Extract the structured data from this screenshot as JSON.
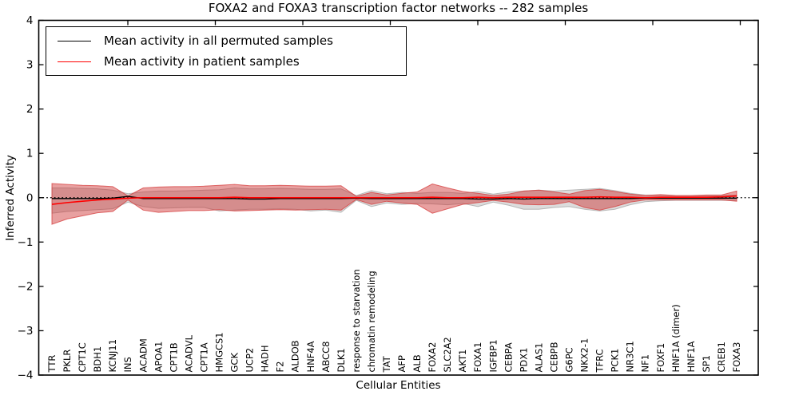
{
  "title": "FOXA2 and FOXA3 transcription factor networks -- 282 samples",
  "axes": {
    "ylabel": "Inferred Activity",
    "xlabel": "Cellular Entities"
  },
  "legend": {
    "items": [
      {
        "label": "Mean activity in all permuted samples",
        "color": "#000000"
      },
      {
        "label": "Mean activity in patient samples",
        "color": "#ff0000"
      }
    ]
  },
  "colors": {
    "frame": "#000000",
    "patient_line": "#ff0000",
    "permuted_line": "#000000",
    "patient_band_fill": "rgba(205,45,45,0.45)",
    "patient_band_edge": "rgba(213,60,60,0.75)",
    "permuted_band_fill": "rgba(128,128,128,0.28)",
    "permuted_band_edge": "rgba(140,140,140,0.55)"
  },
  "chart_data": {
    "type": "line",
    "title": "FOXA2 and FOXA3 transcription factor networks -- 282 samples",
    "xlabel": "Cellular Entities",
    "ylabel": "Inferred Activity",
    "ylim": [
      -4,
      4
    ],
    "yticks": [
      4,
      3,
      2,
      1,
      0,
      -1,
      -2,
      -3,
      -4
    ],
    "zero_line": true,
    "legend_position": "upper left",
    "grid": false,
    "categories": [
      "TTR",
      "PKLR",
      "CPT1C",
      "BDH1",
      "KCNJ11",
      "INS",
      "ACADM",
      "APOA1",
      "CPT1B",
      "ACADVL",
      "CPT1A",
      "HMGCS1",
      "GCK",
      "UCP2",
      "HADH",
      "F2",
      "ALDOB",
      "HNF4A",
      "ABCC8",
      "DLK1",
      "response to starvation",
      "chromatin remodeling",
      "TAT",
      "AFP",
      "ALB",
      "FOXA2",
      "SLC2A2",
      "AKT1",
      "FOXA1",
      "IGFBP1",
      "CEBPA",
      "PDX1",
      "ALAS1",
      "CEBPB",
      "G6PC",
      "NKX2-1",
      "TFRC",
      "PCK1",
      "NR3C1",
      "NF1",
      "FOXF1",
      "HNF1A (dimer)",
      "HNF1A",
      "SP1",
      "CREB1",
      "FOXA3"
    ],
    "series": [
      {
        "name": "Mean activity in all permuted samples",
        "color": "#000000",
        "style": "solid",
        "values": [
          -0.02,
          -0.02,
          -0.02,
          -0.02,
          -0.01,
          0.03,
          -0.02,
          -0.02,
          -0.02,
          -0.02,
          -0.02,
          -0.02,
          -0.02,
          -0.03,
          -0.03,
          -0.02,
          -0.02,
          -0.02,
          -0.02,
          -0.02,
          -0.01,
          -0.02,
          -0.02,
          -0.02,
          -0.02,
          -0.02,
          -0.02,
          -0.02,
          -0.03,
          -0.03,
          -0.02,
          -0.03,
          -0.02,
          -0.02,
          -0.02,
          -0.02,
          -0.02,
          -0.02,
          -0.02,
          -0.01,
          -0.01,
          -0.01,
          -0.01,
          -0.01,
          -0.01,
          -0.01
        ]
      },
      {
        "name": "Mean activity in patient samples",
        "color": "#ff0000",
        "style": "solid",
        "values": [
          -0.15,
          -0.11,
          -0.08,
          -0.05,
          -0.03,
          -0.01,
          0.0,
          0.0,
          0.0,
          0.0,
          0.0,
          0.0,
          0.01,
          0.0,
          0.0,
          0.0,
          0.0,
          0.0,
          0.0,
          0.0,
          0.0,
          0.0,
          0.0,
          0.0,
          0.0,
          0.01,
          0.0,
          0.0,
          0.01,
          0.0,
          0.01,
          0.01,
          0.01,
          0.01,
          0.01,
          0.01,
          0.02,
          0.01,
          0.01,
          0.0,
          0.01,
          0.01,
          0.01,
          0.01,
          0.02,
          0.04
        ]
      }
    ],
    "bands": [
      {
        "name": "permuted samples ± std",
        "fill": "rgba(128,128,128,0.28)",
        "edge": "rgba(140,140,140,0.55)",
        "upper": [
          0.22,
          0.22,
          0.21,
          0.2,
          0.17,
          0.09,
          0.13,
          0.15,
          0.15,
          0.16,
          0.17,
          0.18,
          0.22,
          0.2,
          0.2,
          0.21,
          0.2,
          0.19,
          0.19,
          0.2,
          0.05,
          0.16,
          0.09,
          0.12,
          0.1,
          0.12,
          0.12,
          0.1,
          0.14,
          0.08,
          0.13,
          0.15,
          0.17,
          0.15,
          0.17,
          0.19,
          0.21,
          0.16,
          0.1,
          0.06,
          0.06,
          0.05,
          0.05,
          0.05,
          0.05,
          0.06
        ],
        "lower": [
          -0.35,
          -0.31,
          -0.29,
          -0.27,
          -0.25,
          -0.1,
          -0.2,
          -0.24,
          -0.23,
          -0.22,
          -0.22,
          -0.3,
          -0.28,
          -0.26,
          -0.26,
          -0.25,
          -0.26,
          -0.3,
          -0.28,
          -0.33,
          -0.06,
          -0.2,
          -0.12,
          -0.15,
          -0.13,
          -0.14,
          -0.16,
          -0.13,
          -0.2,
          -0.1,
          -0.17,
          -0.26,
          -0.26,
          -0.22,
          -0.2,
          -0.26,
          -0.3,
          -0.26,
          -0.16,
          -0.09,
          -0.07,
          -0.06,
          -0.06,
          -0.06,
          -0.06,
          -0.06
        ]
      },
      {
        "name": "patient samples ± std",
        "fill": "rgba(205,45,45,0.45)",
        "edge": "rgba(213,60,60,0.75)",
        "upper": [
          0.32,
          0.3,
          0.28,
          0.27,
          0.25,
          0.04,
          0.22,
          0.24,
          0.25,
          0.25,
          0.26,
          0.28,
          0.3,
          0.27,
          0.27,
          0.28,
          0.27,
          0.26,
          0.26,
          0.27,
          0.03,
          0.12,
          0.06,
          0.1,
          0.13,
          0.31,
          0.22,
          0.14,
          0.1,
          0.05,
          0.08,
          0.15,
          0.17,
          0.13,
          0.08,
          0.16,
          0.19,
          0.14,
          0.08,
          0.05,
          0.07,
          0.05,
          0.05,
          0.06,
          0.06,
          0.15
        ],
        "lower": [
          -0.6,
          -0.48,
          -0.41,
          -0.34,
          -0.31,
          -0.05,
          -0.28,
          -0.33,
          -0.31,
          -0.29,
          -0.29,
          -0.27,
          -0.3,
          -0.29,
          -0.28,
          -0.27,
          -0.28,
          -0.27,
          -0.26,
          -0.28,
          -0.04,
          -0.15,
          -0.08,
          -0.12,
          -0.15,
          -0.35,
          -0.25,
          -0.15,
          -0.11,
          -0.06,
          -0.1,
          -0.15,
          -0.16,
          -0.15,
          -0.09,
          -0.22,
          -0.28,
          -0.2,
          -0.1,
          -0.05,
          -0.05,
          -0.05,
          -0.05,
          -0.05,
          -0.05,
          -0.08
        ]
      }
    ]
  }
}
